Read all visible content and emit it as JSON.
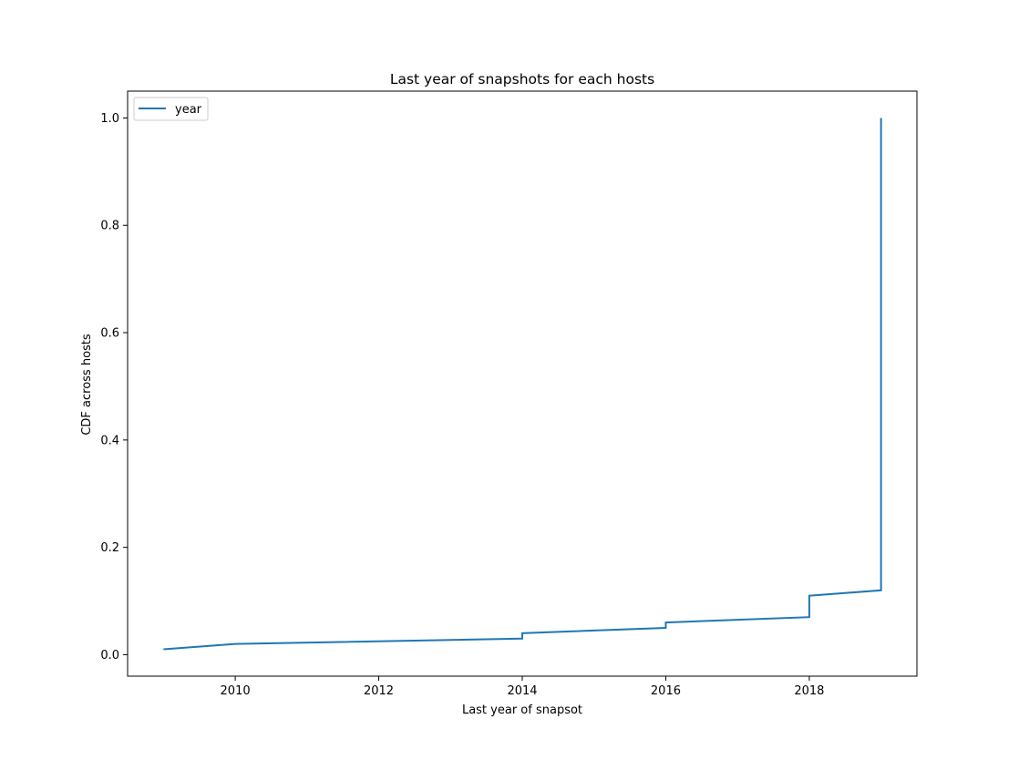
{
  "chart_data": {
    "type": "line",
    "title": "Last year of snapshots for each hosts",
    "xlabel": "Last year of snapsot",
    "ylabel": "CDF across hosts",
    "xlim": [
      2008.5,
      2019.5
    ],
    "ylim": [
      -0.04,
      1.05
    ],
    "xticks": [
      2010,
      2012,
      2014,
      2016,
      2018
    ],
    "xtick_labels": [
      "2010",
      "2012",
      "2014",
      "2016",
      "2018"
    ],
    "yticks": [
      0.0,
      0.2,
      0.4,
      0.6,
      0.8,
      1.0
    ],
    "ytick_labels": [
      "0.0",
      "0.2",
      "0.4",
      "0.6",
      "0.8",
      "1.0"
    ],
    "grid": false,
    "legend_position": "upper-left",
    "series_color": "#1f77b4",
    "series": [
      {
        "name": "year",
        "x": [
          2009,
          2010,
          2014,
          2014,
          2016,
          2016,
          2018,
          2018,
          2019,
          2019
        ],
        "y": [
          0.01,
          0.02,
          0.03,
          0.04,
          0.05,
          0.06,
          0.07,
          0.11,
          0.12,
          1.0
        ]
      }
    ]
  }
}
